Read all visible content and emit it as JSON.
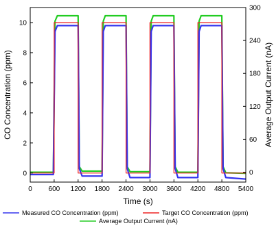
{
  "chart_data": {
    "type": "line",
    "title": "",
    "xlabel": "Time (s)",
    "ylabel": "CO Concentration (ppm)",
    "y2label": "Average Output Current (nA)",
    "xlim": [
      0,
      5400
    ],
    "ylim": [
      -0.6,
      11
    ],
    "y2lim": [
      -18,
      300
    ],
    "xticks": [
      0,
      600,
      1200,
      1800,
      2400,
      3000,
      3600,
      4200,
      4800,
      5400
    ],
    "yticks": [
      0,
      2,
      4,
      6,
      8,
      10
    ],
    "y2ticks": [
      0,
      60,
      120,
      180,
      240,
      300
    ],
    "legend_position": "bottom",
    "series": [
      {
        "name": "Measured CO Concentration (ppm)",
        "axis": "left",
        "color": "#3333ee",
        "x": [
          0,
          580,
          620,
          680,
          1200,
          1230,
          1300,
          1800,
          1830,
          1880,
          2400,
          2430,
          2500,
          3000,
          3030,
          3080,
          3600,
          3630,
          3700,
          4200,
          4230,
          4280,
          4800,
          4830,
          4900,
          5400
        ],
        "y": [
          -0.1,
          -0.1,
          9.4,
          9.8,
          9.8,
          0.3,
          -0.2,
          -0.2,
          9.4,
          9.8,
          9.8,
          0.3,
          -0.3,
          -0.3,
          9.4,
          9.8,
          9.8,
          0.3,
          -0.3,
          -0.3,
          9.4,
          9.8,
          9.8,
          0.3,
          -0.3,
          -0.4
        ]
      },
      {
        "name": "Target CO Concentration (ppm)",
        "axis": "left",
        "color": "#ee2222",
        "x": [
          0,
          600,
          600,
          1200,
          1200,
          1800,
          1800,
          2400,
          2400,
          3000,
          3000,
          3600,
          3600,
          4200,
          4200,
          4800,
          4800,
          5400
        ],
        "y": [
          0,
          0,
          10,
          10,
          0,
          0,
          10,
          10,
          0,
          0,
          10,
          10,
          0,
          0,
          10,
          10,
          0,
          0
        ]
      },
      {
        "name": "Average Output Current (nA)",
        "axis": "right",
        "color": "#22cc22",
        "x": [
          0,
          580,
          620,
          680,
          1200,
          1230,
          1300,
          1800,
          1830,
          1880,
          2400,
          2430,
          2500,
          3000,
          3030,
          3080,
          3600,
          3630,
          3700,
          4200,
          4230,
          4280,
          4800,
          4830,
          4900,
          5400
        ],
        "y": [
          0,
          0,
          275,
          285,
          285,
          10,
          2,
          2,
          275,
          285,
          285,
          10,
          1,
          1,
          275,
          285,
          285,
          10,
          0,
          0,
          275,
          285,
          285,
          10,
          -1,
          -2
        ]
      }
    ]
  }
}
